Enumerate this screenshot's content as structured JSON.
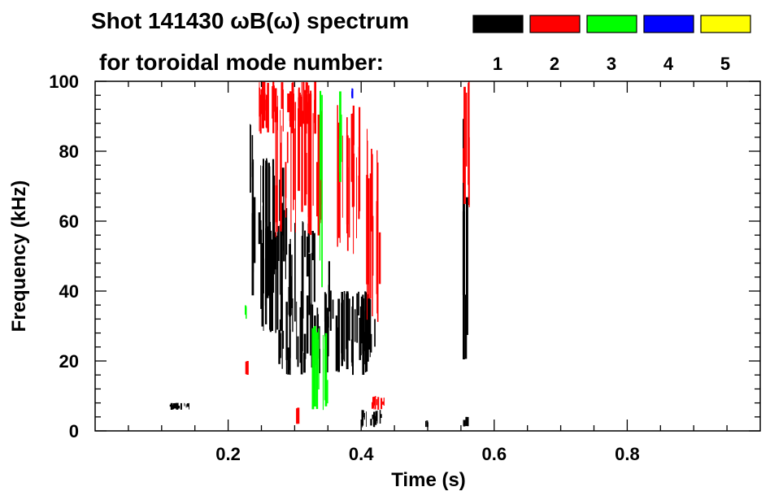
{
  "chart_data": {
    "type": "heatmap",
    "title_line1": "Shot 141430 ωB(ω) spectrum",
    "title_line2": "for toroidal mode number:",
    "xlabel": "Time (s)",
    "ylabel": "Frequency (kHz)",
    "xlim": [
      0.0,
      1.0
    ],
    "ylim": [
      0,
      100
    ],
    "x_ticks": [
      {
        "value": 0.2,
        "label": "0.2"
      },
      {
        "value": 0.4,
        "label": "0.4"
      },
      {
        "value": 0.6,
        "label": "0.6"
      },
      {
        "value": 0.8,
        "label": "0.8"
      }
    ],
    "y_ticks": [
      {
        "value": 0,
        "label": "0"
      },
      {
        "value": 20,
        "label": "20"
      },
      {
        "value": 40,
        "label": "40"
      },
      {
        "value": 60,
        "label": "60"
      },
      {
        "value": 80,
        "label": "80"
      },
      {
        "value": 100,
        "label": "100"
      }
    ],
    "legend": [
      {
        "mode": "1",
        "color": "#000000"
      },
      {
        "mode": "2",
        "color": "#ff0000"
      },
      {
        "mode": "3",
        "color": "#00ff00"
      },
      {
        "mode": "4",
        "color": "#0000ff"
      },
      {
        "mode": "5",
        "color": "#ffff00"
      }
    ],
    "regions": [
      {
        "mode": "1",
        "t": [
          0.232,
          0.29
        ],
        "f": [
          38,
          78
        ]
      },
      {
        "mode": "1",
        "t": [
          0.232,
          0.236
        ],
        "f": [
          68,
          88
        ]
      },
      {
        "mode": "1",
        "t": [
          0.245,
          0.3
        ],
        "f": [
          28,
          60
        ]
      },
      {
        "mode": "1",
        "t": [
          0.275,
          0.41
        ],
        "f": [
          16,
          40
        ]
      },
      {
        "mode": "1",
        "t": [
          0.31,
          0.33
        ],
        "f": [
          32,
          60
        ]
      },
      {
        "mode": "1",
        "t": [
          0.35,
          0.355
        ],
        "f": [
          28,
          52
        ]
      },
      {
        "mode": "1",
        "t": [
          0.395,
          0.42
        ],
        "f": [
          20,
          40
        ]
      },
      {
        "mode": "1",
        "t": [
          0.4,
          0.43
        ],
        "f": [
          1,
          6
        ]
      },
      {
        "mode": "1",
        "t": [
          0.551,
          0.558
        ],
        "f": [
          20,
          90
        ]
      },
      {
        "mode": "1",
        "t": [
          0.55,
          0.56
        ],
        "f": [
          1,
          4
        ]
      },
      {
        "mode": "1",
        "t": [
          0.495,
          0.5
        ],
        "f": [
          1,
          3
        ]
      },
      {
        "mode": "1",
        "t": [
          0.112,
          0.142
        ],
        "f": [
          6,
          8
        ]
      },
      {
        "mode": "2",
        "t": [
          0.245,
          0.33
        ],
        "f": [
          85,
          100
        ]
      },
      {
        "mode": "2",
        "t": [
          0.27,
          0.34
        ],
        "f": [
          55,
          98
        ]
      },
      {
        "mode": "2",
        "t": [
          0.36,
          0.4
        ],
        "f": [
          50,
          95
        ]
      },
      {
        "mode": "2",
        "t": [
          0.405,
          0.43
        ],
        "f": [
          30,
          90
        ]
      },
      {
        "mode": "2",
        "t": [
          0.3,
          0.305
        ],
        "f": [
          2,
          8
        ]
      },
      {
        "mode": "2",
        "t": [
          0.412,
          0.435
        ],
        "f": [
          6,
          10
        ]
      },
      {
        "mode": "2",
        "t": [
          0.552,
          0.565
        ],
        "f": [
          64,
          100
        ]
      },
      {
        "mode": "2",
        "t": [
          0.224,
          0.228
        ],
        "f": [
          16,
          20
        ]
      },
      {
        "mode": "3",
        "t": [
          0.325,
          0.35
        ],
        "f": [
          6,
          30
        ]
      },
      {
        "mode": "3",
        "t": [
          0.337,
          0.342
        ],
        "f": [
          40,
          100
        ]
      },
      {
        "mode": "3",
        "t": [
          0.365,
          0.37
        ],
        "f": [
          70,
          100
        ]
      },
      {
        "mode": "3",
        "t": [
          0.223,
          0.227
        ],
        "f": [
          32,
          36
        ]
      },
      {
        "mode": "4",
        "t": [
          0.384,
          0.387
        ],
        "f": [
          95,
          98
        ]
      }
    ]
  }
}
